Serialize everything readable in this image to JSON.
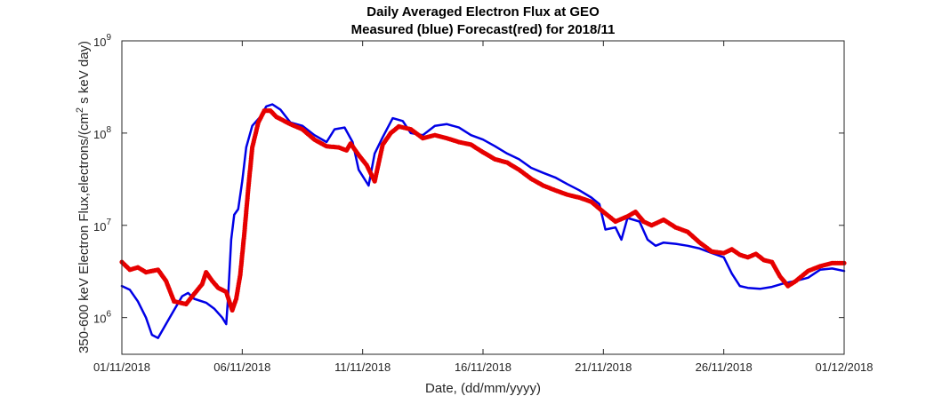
{
  "chart_data": {
    "type": "line",
    "title": "Daily Averaged Electron Flux at GEO",
    "subtitle": "Measured (blue) Forecast(red) for 2018/11",
    "xlabel": "Date, (dd/mm/yyyy)",
    "ylabel_main": "350-600 keV Electron Flux,electrons/(cm",
    "ylabel_sup": "2",
    "ylabel_tail": " s keV day)",
    "xlim": [
      "2018-11-01",
      "2018-12-01"
    ],
    "ylim": [
      400000,
      1000000000
    ],
    "yscale": "log",
    "grid": false,
    "x_ticks": [
      {
        "date": "2018-11-01",
        "label": "01/11/2018"
      },
      {
        "date": "2018-11-06",
        "label": "06/11/2018"
      },
      {
        "date": "2018-11-11",
        "label": "11/11/2018"
      },
      {
        "date": "2018-11-16",
        "label": "16/11/2018"
      },
      {
        "date": "2018-11-21",
        "label": "21/11/2018"
      },
      {
        "date": "2018-11-26",
        "label": "26/11/2018"
      },
      {
        "date": "2018-12-01",
        "label": "01/12/2018"
      }
    ],
    "y_ticks": [
      {
        "value": 1000000,
        "base": "10",
        "exp": "6"
      },
      {
        "value": 10000000,
        "base": "10",
        "exp": "7"
      },
      {
        "value": 100000000,
        "base": "10",
        "exp": "8"
      },
      {
        "value": 1000000000,
        "base": "10",
        "exp": "9"
      }
    ],
    "series": [
      {
        "color": "#0000e6",
        "style": "line",
        "points": [
          [
            "2018-11-01 00:00",
            2200000
          ],
          [
            "2018-11-01 08:00",
            2000000
          ],
          [
            "2018-11-01 16:00",
            1500000
          ],
          [
            "2018-11-02 00:00",
            1000000
          ],
          [
            "2018-11-02 06:00",
            650000
          ],
          [
            "2018-11-02 12:00",
            600000
          ],
          [
            "2018-11-02 20:00",
            850000
          ],
          [
            "2018-11-03 04:00",
            1200000
          ],
          [
            "2018-11-03 12:00",
            1700000
          ],
          [
            "2018-11-03 18:00",
            1850000
          ],
          [
            "2018-11-04 00:00",
            1600000
          ],
          [
            "2018-11-04 12:00",
            1450000
          ],
          [
            "2018-11-04 20:00",
            1250000
          ],
          [
            "2018-11-05 04:00",
            1000000
          ],
          [
            "2018-11-05 08:00",
            850000
          ],
          [
            "2018-11-05 10:00",
            1700000
          ],
          [
            "2018-11-05 13:00",
            7000000
          ],
          [
            "2018-11-05 16:00",
            13000000
          ],
          [
            "2018-11-05 20:00",
            15000000
          ],
          [
            "2018-11-06 00:00",
            30000000
          ],
          [
            "2018-11-06 04:00",
            70000000
          ],
          [
            "2018-11-06 10:00",
            120000000
          ],
          [
            "2018-11-06 18:00",
            150000000
          ],
          [
            "2018-11-07 00:00",
            195000000
          ],
          [
            "2018-11-07 06:00",
            205000000
          ],
          [
            "2018-11-07 14:00",
            180000000
          ],
          [
            "2018-11-08 00:00",
            130000000
          ],
          [
            "2018-11-08 12:00",
            120000000
          ],
          [
            "2018-11-09 00:00",
            95000000
          ],
          [
            "2018-11-09 12:00",
            80000000
          ],
          [
            "2018-11-09 20:00",
            110000000
          ],
          [
            "2018-11-10 06:00",
            115000000
          ],
          [
            "2018-11-10 14:00",
            80000000
          ],
          [
            "2018-11-10 20:00",
            40000000
          ],
          [
            "2018-11-11 06:00",
            27000000
          ],
          [
            "2018-11-11 12:00",
            60000000
          ],
          [
            "2018-11-11 20:00",
            90000000
          ],
          [
            "2018-11-12 06:00",
            145000000
          ],
          [
            "2018-11-12 16:00",
            135000000
          ],
          [
            "2018-11-13 00:00",
            100000000
          ],
          [
            "2018-11-13 12:00",
            95000000
          ],
          [
            "2018-11-14 00:00",
            120000000
          ],
          [
            "2018-11-14 12:00",
            125000000
          ],
          [
            "2018-11-15 00:00",
            115000000
          ],
          [
            "2018-11-15 12:00",
            95000000
          ],
          [
            "2018-11-16 00:00",
            85000000
          ],
          [
            "2018-11-16 12:00",
            72000000
          ],
          [
            "2018-11-17 00:00",
            60000000
          ],
          [
            "2018-11-17 12:00",
            52000000
          ],
          [
            "2018-11-18 00:00",
            42000000
          ],
          [
            "2018-11-18 12:00",
            37000000
          ],
          [
            "2018-11-19 00:00",
            33000000
          ],
          [
            "2018-11-19 12:00",
            28000000
          ],
          [
            "2018-11-20 00:00",
            24000000
          ],
          [
            "2018-11-20 12:00",
            20000000
          ],
          [
            "2018-11-20 20:00",
            17000000
          ],
          [
            "2018-11-21 02:00",
            9000000
          ],
          [
            "2018-11-21 12:00",
            9500000
          ],
          [
            "2018-11-21 18:00",
            7000000
          ],
          [
            "2018-11-22 00:00",
            12000000
          ],
          [
            "2018-11-22 12:00",
            11000000
          ],
          [
            "2018-11-22 20:00",
            7000000
          ],
          [
            "2018-11-23 04:00",
            6000000
          ],
          [
            "2018-11-23 12:00",
            6500000
          ],
          [
            "2018-11-24 00:00",
            6300000
          ],
          [
            "2018-11-24 12:00",
            6000000
          ],
          [
            "2018-11-25 00:00",
            5600000
          ],
          [
            "2018-11-25 12:00",
            5000000
          ],
          [
            "2018-11-26 00:00",
            4500000
          ],
          [
            "2018-11-26 08:00",
            3000000
          ],
          [
            "2018-11-26 16:00",
            2200000
          ],
          [
            "2018-11-27 00:00",
            2100000
          ],
          [
            "2018-11-27 12:00",
            2050000
          ],
          [
            "2018-11-28 00:00",
            2150000
          ],
          [
            "2018-11-28 12:00",
            2350000
          ],
          [
            "2018-11-29 00:00",
            2500000
          ],
          [
            "2018-11-29 12:00",
            2700000
          ],
          [
            "2018-11-30 00:00",
            3300000
          ],
          [
            "2018-11-30 12:00",
            3400000
          ],
          [
            "2018-12-01 00:00",
            3200000
          ]
        ]
      },
      {
        "color": "#e60000",
        "style": "dots",
        "points": [
          [
            "2018-11-01 00:00",
            4000000
          ],
          [
            "2018-11-01 08:00",
            3300000
          ],
          [
            "2018-11-01 16:00",
            3500000
          ],
          [
            "2018-11-02 00:00",
            3100000
          ],
          [
            "2018-11-02 12:00",
            3300000
          ],
          [
            "2018-11-02 20:00",
            2500000
          ],
          [
            "2018-11-03 04:00",
            1500000
          ],
          [
            "2018-11-03 16:00",
            1400000
          ],
          [
            "2018-11-04 00:00",
            1800000
          ],
          [
            "2018-11-04 08:00",
            2300000
          ],
          [
            "2018-11-04 12:00",
            3100000
          ],
          [
            "2018-11-04 18:00",
            2500000
          ],
          [
            "2018-11-05 00:00",
            2100000
          ],
          [
            "2018-11-05 08:00",
            1900000
          ],
          [
            "2018-11-05 14:00",
            1200000
          ],
          [
            "2018-11-05 18:00",
            1600000
          ],
          [
            "2018-11-05 22:00",
            2900000
          ],
          [
            "2018-11-06 02:00",
            8000000
          ],
          [
            "2018-11-06 06:00",
            25000000
          ],
          [
            "2018-11-06 10:00",
            70000000
          ],
          [
            "2018-11-06 16:00",
            130000000
          ],
          [
            "2018-11-06 22:00",
            175000000
          ],
          [
            "2018-11-07 04:00",
            175000000
          ],
          [
            "2018-11-07 10:00",
            150000000
          ],
          [
            "2018-11-08 00:00",
            125000000
          ],
          [
            "2018-11-08 12:00",
            110000000
          ],
          [
            "2018-11-09 00:00",
            85000000
          ],
          [
            "2018-11-09 12:00",
            72000000
          ],
          [
            "2018-11-10 00:00",
            70000000
          ],
          [
            "2018-11-10 08:00",
            65000000
          ],
          [
            "2018-11-10 12:00",
            77000000
          ],
          [
            "2018-11-10 20:00",
            58000000
          ],
          [
            "2018-11-11 04:00",
            45000000
          ],
          [
            "2018-11-11 12:00",
            30000000
          ],
          [
            "2018-11-11 20:00",
            75000000
          ],
          [
            "2018-11-12 04:00",
            100000000
          ],
          [
            "2018-11-12 12:00",
            118000000
          ],
          [
            "2018-11-13 00:00",
            110000000
          ],
          [
            "2018-11-13 12:00",
            88000000
          ],
          [
            "2018-11-14 00:00",
            95000000
          ],
          [
            "2018-11-14 12:00",
            88000000
          ],
          [
            "2018-11-15 00:00",
            80000000
          ],
          [
            "2018-11-15 12:00",
            75000000
          ],
          [
            "2018-11-16 00:00",
            62000000
          ],
          [
            "2018-11-16 12:00",
            52000000
          ],
          [
            "2018-11-17 00:00",
            48000000
          ],
          [
            "2018-11-17 12:00",
            40000000
          ],
          [
            "2018-11-18 00:00",
            32000000
          ],
          [
            "2018-11-18 12:00",
            27000000
          ],
          [
            "2018-11-19 00:00",
            24000000
          ],
          [
            "2018-11-19 12:00",
            21500000
          ],
          [
            "2018-11-20 00:00",
            20000000
          ],
          [
            "2018-11-20 12:00",
            18000000
          ],
          [
            "2018-11-21 00:00",
            14000000
          ],
          [
            "2018-11-21 12:00",
            11000000
          ],
          [
            "2018-11-22 00:00",
            12500000
          ],
          [
            "2018-11-22 08:00",
            14000000
          ],
          [
            "2018-11-22 16:00",
            11000000
          ],
          [
            "2018-11-23 00:00",
            10000000
          ],
          [
            "2018-11-23 12:00",
            11500000
          ],
          [
            "2018-11-24 00:00",
            9500000
          ],
          [
            "2018-11-24 12:00",
            8500000
          ],
          [
            "2018-11-25 00:00",
            6500000
          ],
          [
            "2018-11-25 12:00",
            5200000
          ],
          [
            "2018-11-26 00:00",
            5000000
          ],
          [
            "2018-11-26 08:00",
            5500000
          ],
          [
            "2018-11-26 16:00",
            4800000
          ],
          [
            "2018-11-27 00:00",
            4500000
          ],
          [
            "2018-11-27 08:00",
            4900000
          ],
          [
            "2018-11-27 16:00",
            4200000
          ],
          [
            "2018-11-28 00:00",
            4000000
          ],
          [
            "2018-11-28 08:00",
            2800000
          ],
          [
            "2018-11-28 16:00",
            2200000
          ],
          [
            "2018-11-29 00:00",
            2500000
          ],
          [
            "2018-11-29 12:00",
            3200000
          ],
          [
            "2018-11-30 00:00",
            3600000
          ],
          [
            "2018-11-30 12:00",
            3900000
          ],
          [
            "2018-12-01 00:00",
            3900000
          ]
        ]
      }
    ]
  }
}
